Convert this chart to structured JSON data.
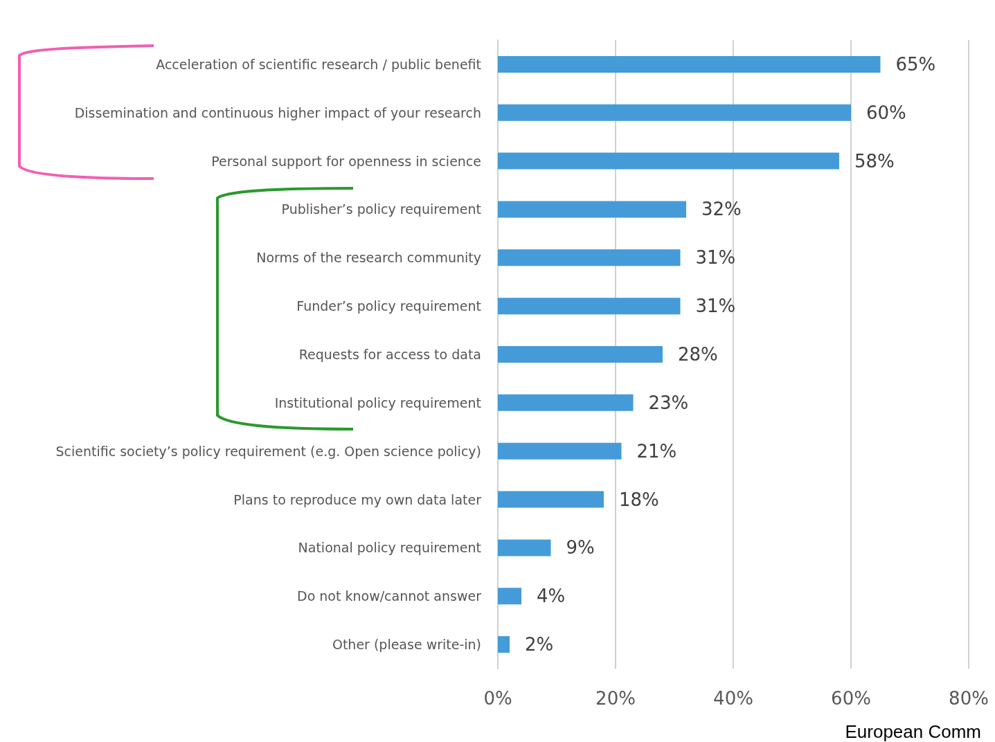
{
  "chart_data": {
    "type": "bar",
    "orientation": "horizontal",
    "categories": [
      "Acceleration of scientific research / public benefit",
      "Dissemination and continuous higher impact of your research",
      "Personal support for openness in science",
      "Publisher’s policy requirement",
      "Norms of the research community",
      "Funder’s policy requirement",
      "Requests for access to data",
      "Institutional policy requirement",
      "Scientific society’s policy requirement (e.g. Open science policy)",
      "Plans to reproduce my own data later",
      "National policy requirement",
      "Do not know/cannot answer",
      "Other (please write-in)"
    ],
    "values": [
      65,
      60,
      58,
      32,
      31,
      31,
      28,
      23,
      21,
      18,
      9,
      4,
      2
    ],
    "value_labels": [
      "65%",
      "60%",
      "58%",
      "32%",
      "31%",
      "31%",
      "28%",
      "23%",
      "21%",
      "18%",
      "9%",
      "4%",
      "2%"
    ],
    "color": "#459bd8",
    "xlim": [
      0,
      80
    ],
    "xticks": [
      {
        "value": 0,
        "label": "0%"
      },
      {
        "value": 20,
        "label": "20%"
      },
      {
        "value": 40,
        "label": "40%"
      },
      {
        "value": 60,
        "label": "60%"
      },
      {
        "value": 80,
        "label": "80%"
      }
    ],
    "grid": "x",
    "annotations": [
      "European Comm"
    ]
  }
}
